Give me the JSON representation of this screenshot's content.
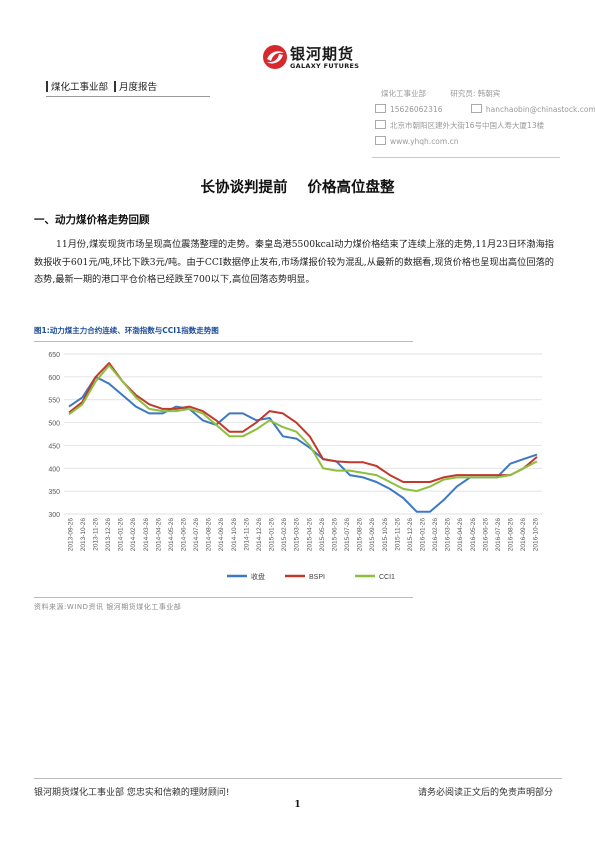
{
  "brand": {
    "name_cn": "银河期货",
    "name_en": "GALAXY FUTURES",
    "logo_color": "#d7282e"
  },
  "header": {
    "dept": "煤化工事业部",
    "doc_type": "月度报告",
    "contact": {
      "dept": "煤化工事业部",
      "researcher": "研究员: 韩朝宾",
      "phone": "15626062316",
      "email": "hanchaobin@chinastock.com.cn",
      "address": "北京市朝阳区建外大街16号中国人寿大厦13楼",
      "website": "www.yhqh.com.cn"
    }
  },
  "title": {
    "part1": "长协谈判提前",
    "part2": "价格高位盘整"
  },
  "section": {
    "heading": "一、动力煤价格走势回顾",
    "paragraph": "11月份,煤炭现货市场呈现高位震荡整理的走势。秦皇岛港5500kcal动力煤价格结束了连续上涨的走势,11月23日环渤海指数报收于601元/吨,环比下跌3元/吨。由于CCI数据停止发布,市场煤报价较为混乱,从最新的数据看,现货价格也呈现出高位回落的态势,最新一期的港口平仓价格已经跌至700以下,高位回落态势明显。"
  },
  "figure": {
    "caption": "图1:动力煤主力合约连续、环渤指数与CCI1指数走势图",
    "source": "资料来源:WIND资讯  银河期货煤化工事业部"
  },
  "chart_data": {
    "type": "line",
    "ylim": [
      300,
      650
    ],
    "yticks": [
      300,
      350,
      400,
      450,
      500,
      550,
      600,
      650
    ],
    "xticks": [
      "2013-09-26",
      "2013-10-26",
      "2013-11-26",
      "2013-12-26",
      "2014-01-26",
      "2014-02-26",
      "2014-03-26",
      "2014-04-26",
      "2014-05-26",
      "2014-06-26",
      "2014-07-26",
      "2014-08-26",
      "2014-09-26",
      "2014-10-26",
      "2014-11-26",
      "2014-12-26",
      "2015-01-26",
      "2015-02-26",
      "2015-03-26",
      "2015-04-26",
      "2015-05-26",
      "2015-06-26",
      "2015-07-26",
      "2015-08-26",
      "2015-09-26",
      "2015-10-26",
      "2015-11-26",
      "2015-12-26",
      "2016-01-26",
      "2016-02-26",
      "2016-03-26",
      "2016-04-26",
      "2016-05-26",
      "2016-06-26",
      "2016-07-26",
      "2016-08-26",
      "2016-09-26",
      "2016-10-26"
    ],
    "grid": true,
    "legend_position": "bottom",
    "series": [
      {
        "name": "收盘",
        "color": "#3c78c3",
        "values": [
          535,
          555,
          600,
          585,
          560,
          535,
          520,
          520,
          535,
          530,
          505,
          495,
          520,
          520,
          505,
          510,
          470,
          465,
          445,
          420,
          415,
          385,
          380,
          370,
          355,
          335,
          305,
          305,
          330,
          360,
          380,
          380,
          380,
          410,
          420,
          430
        ]
      },
      {
        "name": "BSPI",
        "color": "#c0392b",
        "values": [
          522,
          545,
          600,
          630,
          590,
          560,
          540,
          530,
          530,
          535,
          525,
          505,
          480,
          480,
          500,
          525,
          520,
          500,
          470,
          420,
          415,
          413,
          413,
          405,
          385,
          370,
          370,
          370,
          380,
          385,
          385,
          385,
          385,
          385,
          400,
          425
        ]
      },
      {
        "name": "CCI1",
        "color": "#8dbf3f",
        "values": [
          518,
          540,
          590,
          625,
          590,
          555,
          530,
          525,
          525,
          530,
          520,
          495,
          470,
          470,
          485,
          505,
          490,
          480,
          450,
          400,
          395,
          395,
          390,
          385,
          370,
          355,
          350,
          360,
          375,
          380,
          380,
          380,
          380,
          385,
          400,
          415
        ]
      }
    ]
  },
  "footer": {
    "left": "银河期货煤化工事业部  您忠实和信赖的理财顾问!",
    "right": "请务必阅读正文后的免责声明部分",
    "page": "1"
  }
}
